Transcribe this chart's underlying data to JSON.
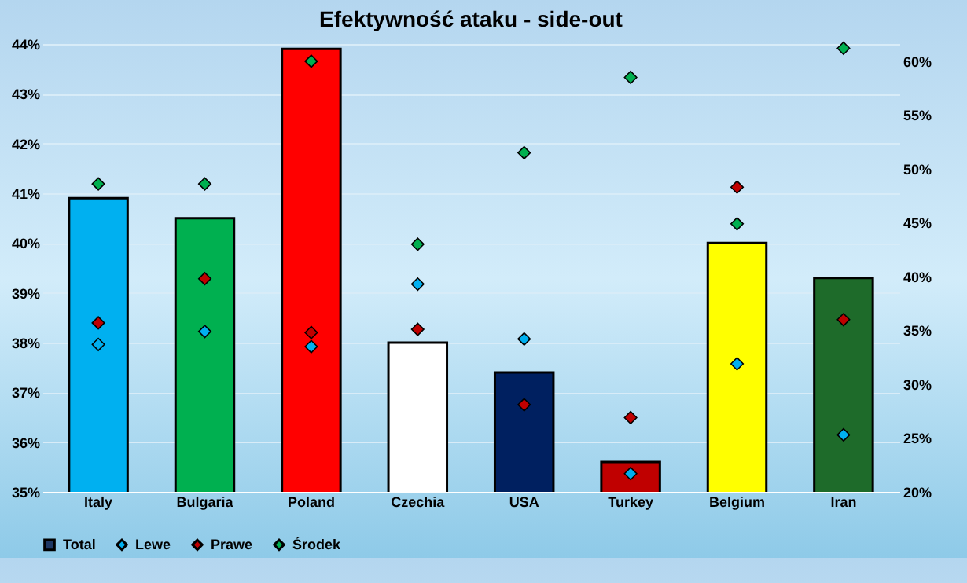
{
  "chart_data": {
    "type": "bar",
    "title": "Efektywność ataku - side-out",
    "categories": [
      "Italy",
      "Bulgaria",
      "Poland",
      "Czechia",
      "USA",
      "Turkey",
      "Belgium",
      "Iran"
    ],
    "series": [
      {
        "name": "Total",
        "type": "bar",
        "color": "#1f3864",
        "colors": [
          "#00b0f0",
          "#00b050",
          "#ff0000",
          "#ffffff",
          "#002060",
          "#c00000",
          "#ffff00",
          "#1e6b2a"
        ],
        "values": [
          40.9,
          40.5,
          43.9,
          38.0,
          37.4,
          35.6,
          40.0,
          39.3
        ]
      },
      {
        "name": "Lewe",
        "type": "scatter",
        "axis": "y2",
        "color": "#00b0f0",
        "values": [
          33.7,
          34.9,
          33.5,
          39.3,
          34.2,
          21.7,
          31.9,
          25.3
        ]
      },
      {
        "name": "Prawe",
        "type": "scatter",
        "axis": "y2",
        "color": "#c00000",
        "values": [
          35.7,
          39.8,
          34.8,
          35.1,
          28.1,
          26.9,
          48.3,
          36.0
        ]
      },
      {
        "name": "Środek",
        "type": "scatter",
        "axis": "y2",
        "color": "#00b050",
        "values": [
          48.6,
          48.6,
          60.0,
          43.0,
          51.5,
          58.5,
          44.9,
          61.2
        ]
      }
    ],
    "ylim": [
      35,
      44
    ],
    "yticks": [
      {
        "value": 35,
        "label": "35%"
      },
      {
        "value": 36,
        "label": "36%"
      },
      {
        "value": 37,
        "label": "37%"
      },
      {
        "value": 38,
        "label": "38%"
      },
      {
        "value": 39,
        "label": "39%"
      },
      {
        "value": 40,
        "label": "40%"
      },
      {
        "value": 41,
        "label": "41%"
      },
      {
        "value": 42,
        "label": "42%"
      },
      {
        "value": 43,
        "label": "43%"
      },
      {
        "value": 44,
        "label": "44%"
      }
    ],
    "y2lim": [
      20,
      61.6
    ],
    "y2ticks": [
      {
        "value": 20,
        "label": "20%"
      },
      {
        "value": 25,
        "label": "25%"
      },
      {
        "value": 30,
        "label": "30%"
      },
      {
        "value": 35,
        "label": "35%"
      },
      {
        "value": 40,
        "label": "40%"
      },
      {
        "value": 45,
        "label": "45%"
      },
      {
        "value": 50,
        "label": "50%"
      },
      {
        "value": 55,
        "label": "55%"
      },
      {
        "value": 60,
        "label": "60%"
      }
    ],
    "grid": "y",
    "legend": "bottom",
    "marker": "diamond"
  }
}
